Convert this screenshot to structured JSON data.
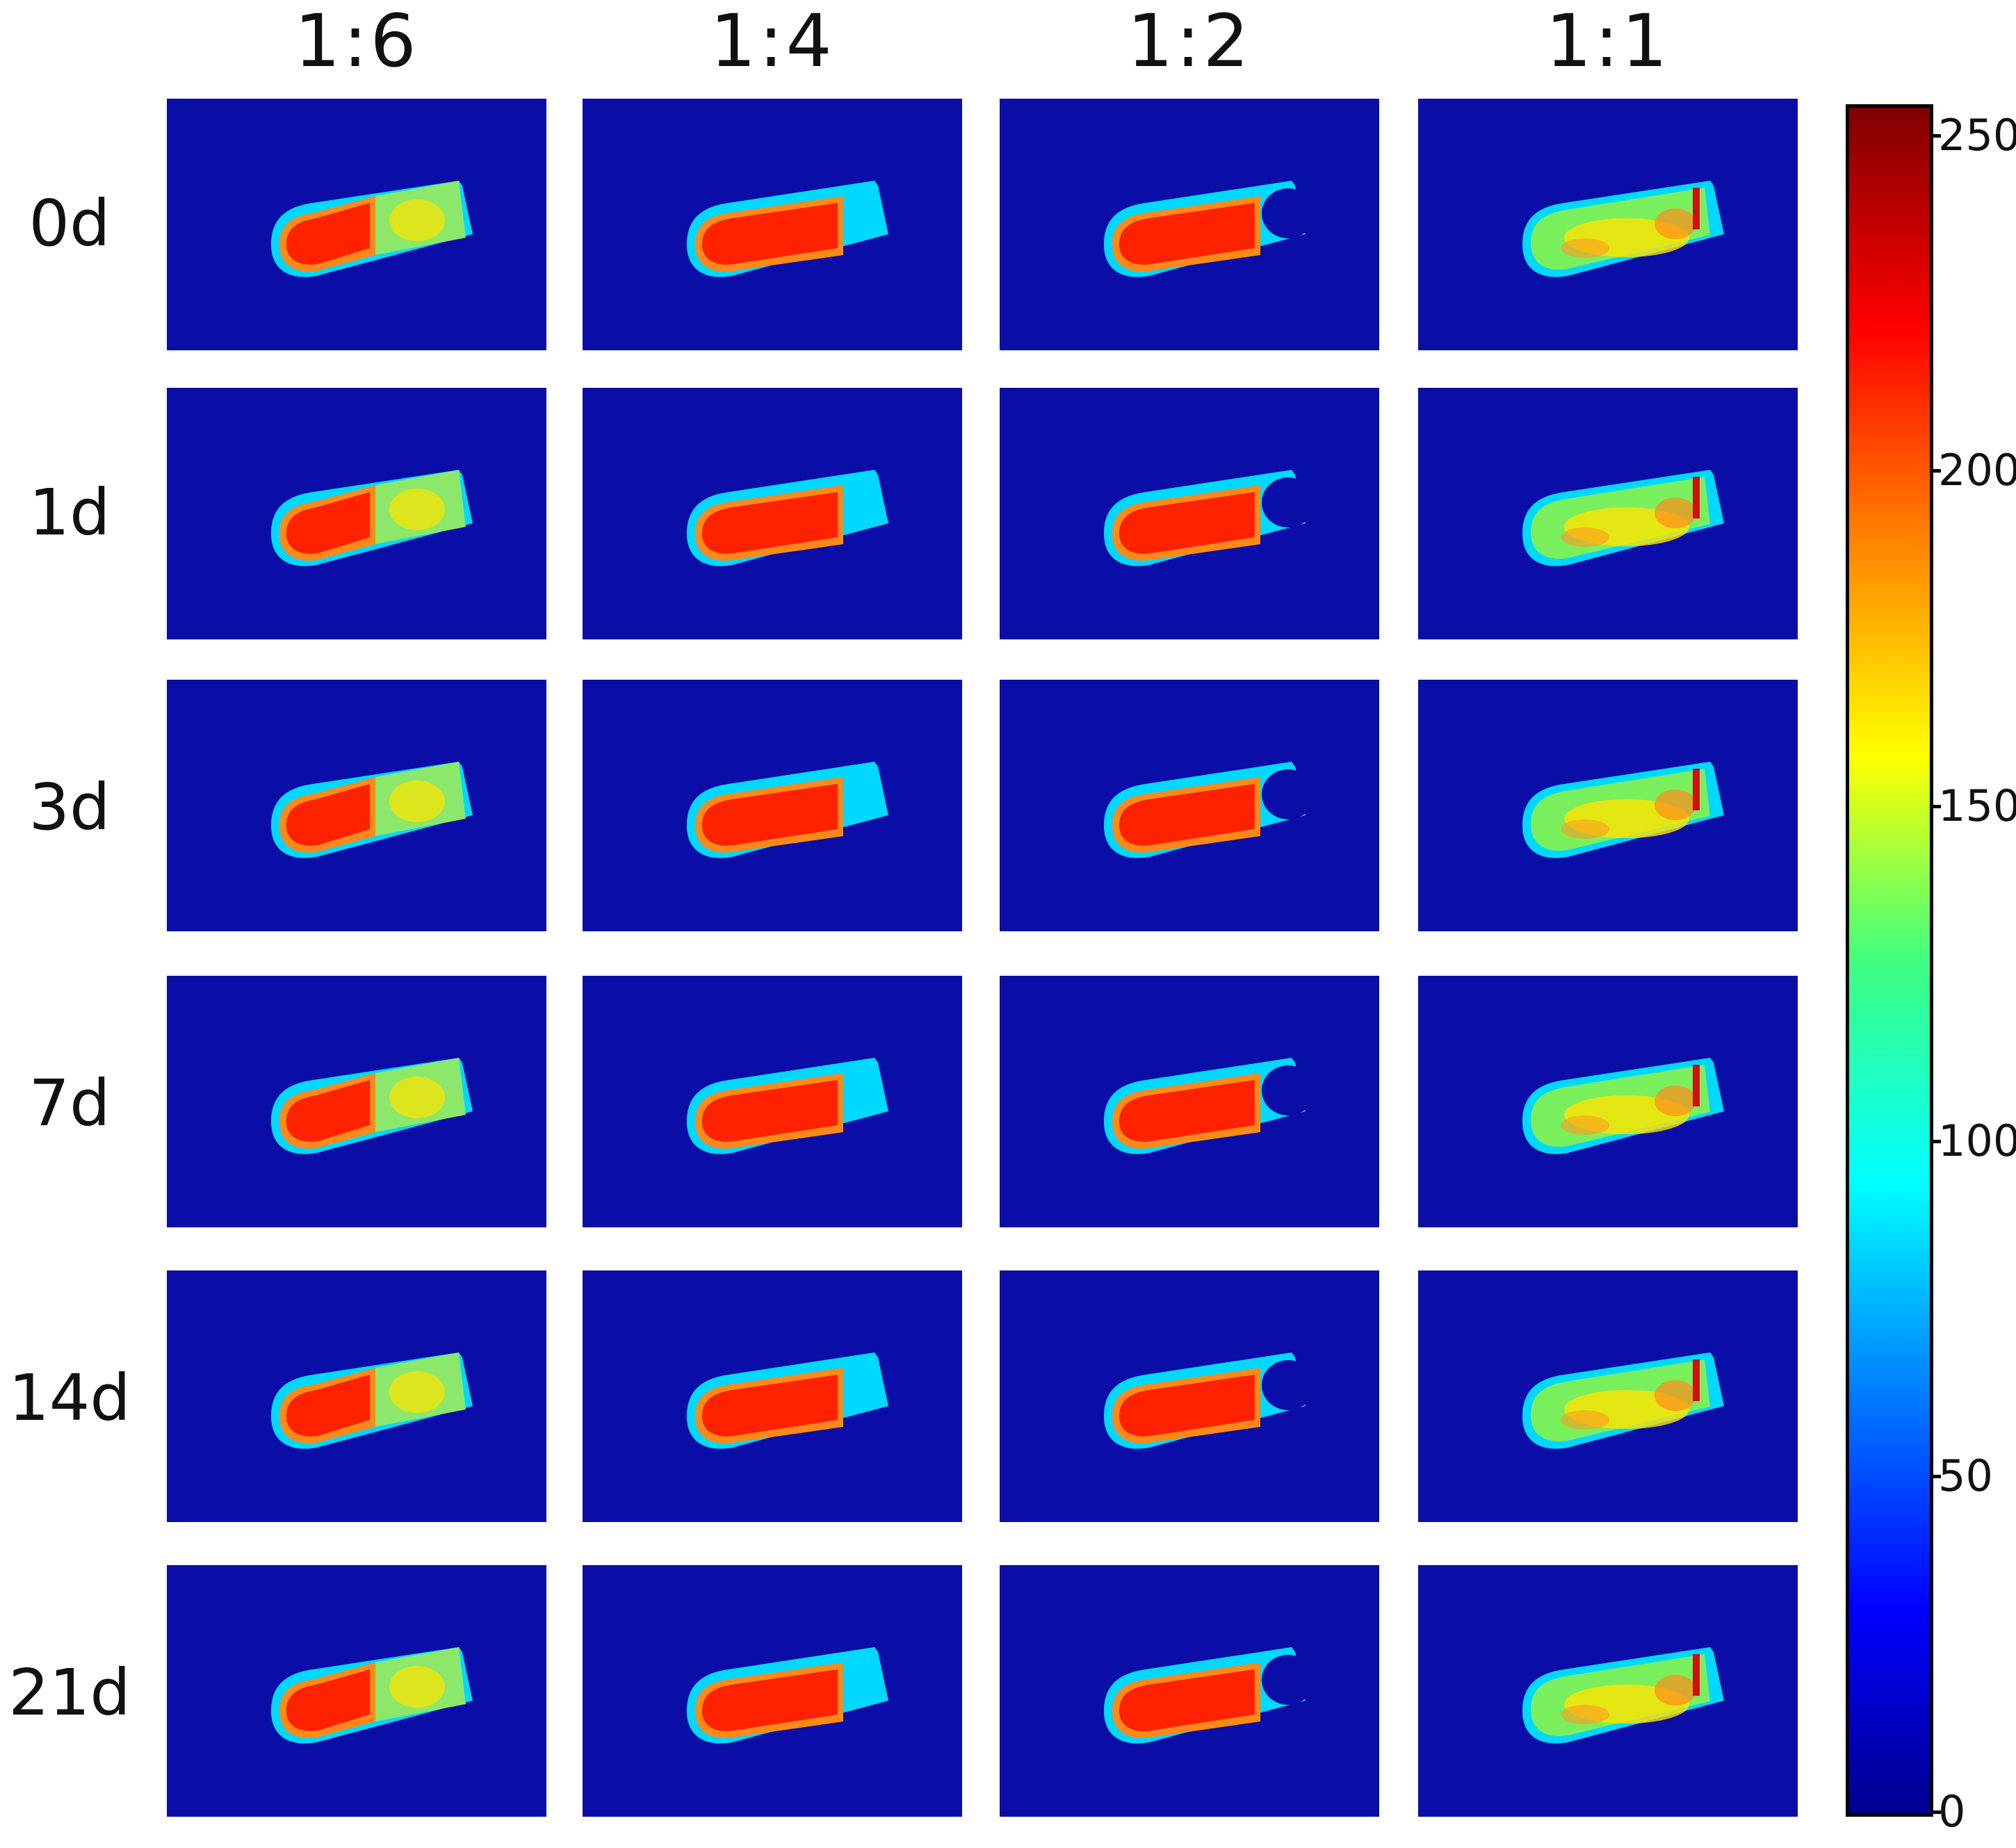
{
  "figure": {
    "column_labels": [
      "1:6",
      "1:4",
      "1:2",
      "1:1"
    ],
    "row_labels": [
      "0d",
      "1d",
      "3d",
      "7d",
      "14d",
      "21d"
    ]
  },
  "colorbar": {
    "tick_labels": [
      "250",
      "200",
      "150",
      "100",
      "50",
      "0"
    ],
    "min": 0,
    "max": 250
  },
  "colors": {
    "background": "#0a0ea6",
    "rim": "#00d8ff",
    "core": "#ff2200",
    "outer": "#ffe400"
  }
}
